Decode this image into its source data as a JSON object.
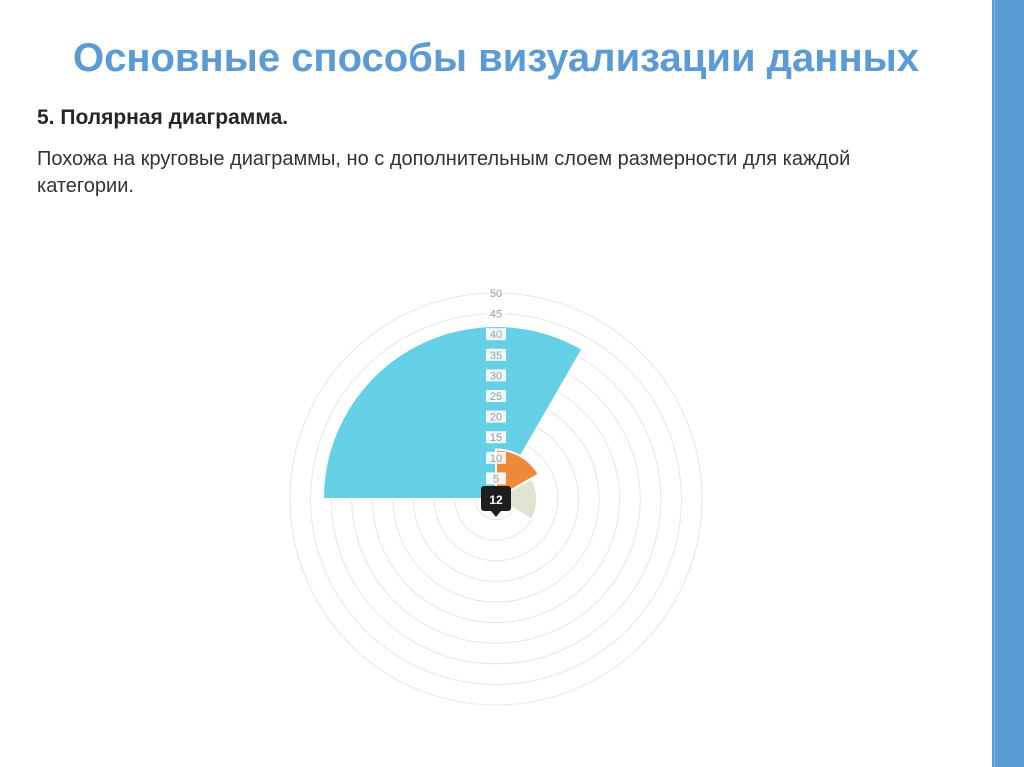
{
  "slide": {
    "title": "Основные способы визуализации данных",
    "subtitle": "5. Полярная диаграмма.",
    "description": "Похожа на круговые диаграммы, но с дополнительным слоем размерности для каждой категории."
  },
  "colors": {
    "accent": "#5b9bd5",
    "grid": "#e6e6e6",
    "tooltip": "#1e1e1e"
  },
  "chart_data": {
    "type": "polar-area",
    "radial_ticks": [
      "5",
      "10",
      "15",
      "20",
      "25",
      "30",
      "35",
      "40",
      "45",
      "50"
    ],
    "rmax": 50,
    "grid": true,
    "segments": [
      {
        "value": 42,
        "color": "#65cfe5",
        "start_deg": -90,
        "end_deg": 30
      },
      {
        "value": 12,
        "color": "#f0883a",
        "start_deg": 0,
        "end_deg": 60
      },
      {
        "value": 10,
        "color": "#e1e3d0",
        "start_deg": 60,
        "end_deg": 120
      }
    ],
    "tooltip": {
      "text": "12"
    }
  }
}
